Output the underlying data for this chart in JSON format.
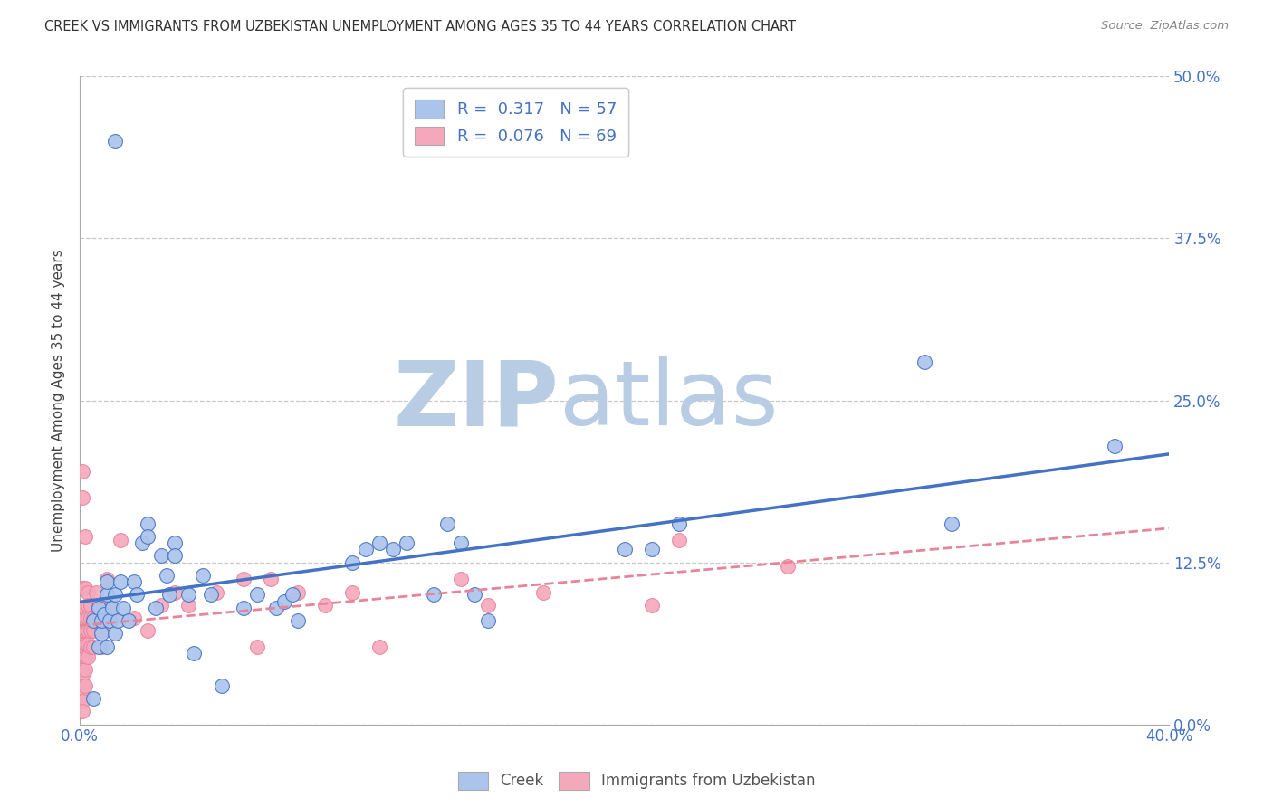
{
  "title": "CREEK VS IMMIGRANTS FROM UZBEKISTAN UNEMPLOYMENT AMONG AGES 35 TO 44 YEARS CORRELATION CHART",
  "source": "Source: ZipAtlas.com",
  "ylabel": "Unemployment Among Ages 35 to 44 years",
  "xlim": [
    0.0,
    0.4
  ],
  "ylim": [
    0.0,
    0.5
  ],
  "xticks": [
    0.0,
    0.1,
    0.2,
    0.3,
    0.4
  ],
  "yticks": [
    0.0,
    0.125,
    0.25,
    0.375,
    0.5
  ],
  "ytick_labels_right": [
    "0.0%",
    "12.5%",
    "25.0%",
    "37.5%",
    "50.0%"
  ],
  "xtick_labels": [
    "0.0%",
    "",
    "",
    "",
    "40.0%"
  ],
  "creek_R": "0.317",
  "creek_N": "57",
  "uzbek_R": "0.076",
  "uzbek_N": "69",
  "creek_color": "#aac4ec",
  "uzbek_color": "#f5a8bc",
  "creek_line_color": "#4472c4",
  "uzbek_line_color": "#e8849a",
  "watermark_ZIP": "ZIP",
  "watermark_atlas": "atlas",
  "watermark_color": "#c8d8ea",
  "background_color": "#ffffff",
  "grid_color": "#c8c8c8",
  "title_color": "#333333",
  "creek_points": [
    [
      0.013,
      0.45
    ],
    [
      0.005,
      0.02
    ],
    [
      0.005,
      0.08
    ],
    [
      0.007,
      0.06
    ],
    [
      0.007,
      0.09
    ],
    [
      0.008,
      0.07
    ],
    [
      0.008,
      0.08
    ],
    [
      0.009,
      0.085
    ],
    [
      0.01,
      0.1
    ],
    [
      0.01,
      0.11
    ],
    [
      0.01,
      0.06
    ],
    [
      0.011,
      0.08
    ],
    [
      0.012,
      0.09
    ],
    [
      0.013,
      0.1
    ],
    [
      0.013,
      0.07
    ],
    [
      0.014,
      0.08
    ],
    [
      0.015,
      0.11
    ],
    [
      0.016,
      0.09
    ],
    [
      0.018,
      0.08
    ],
    [
      0.02,
      0.11
    ],
    [
      0.021,
      0.1
    ],
    [
      0.023,
      0.14
    ],
    [
      0.025,
      0.155
    ],
    [
      0.025,
      0.145
    ],
    [
      0.028,
      0.09
    ],
    [
      0.03,
      0.13
    ],
    [
      0.032,
      0.115
    ],
    [
      0.033,
      0.1
    ],
    [
      0.035,
      0.14
    ],
    [
      0.035,
      0.13
    ],
    [
      0.04,
      0.1
    ],
    [
      0.042,
      0.055
    ],
    [
      0.045,
      0.115
    ],
    [
      0.048,
      0.1
    ],
    [
      0.052,
      0.03
    ],
    [
      0.06,
      0.09
    ],
    [
      0.065,
      0.1
    ],
    [
      0.072,
      0.09
    ],
    [
      0.075,
      0.095
    ],
    [
      0.078,
      0.1
    ],
    [
      0.08,
      0.08
    ],
    [
      0.1,
      0.125
    ],
    [
      0.105,
      0.135
    ],
    [
      0.11,
      0.14
    ],
    [
      0.115,
      0.135
    ],
    [
      0.12,
      0.14
    ],
    [
      0.13,
      0.1
    ],
    [
      0.135,
      0.155
    ],
    [
      0.14,
      0.14
    ],
    [
      0.145,
      0.1
    ],
    [
      0.15,
      0.08
    ],
    [
      0.2,
      0.135
    ],
    [
      0.21,
      0.135
    ],
    [
      0.22,
      0.155
    ],
    [
      0.31,
      0.28
    ],
    [
      0.32,
      0.155
    ],
    [
      0.38,
      0.215
    ]
  ],
  "uzbek_points": [
    [
      0.001,
      0.195
    ],
    [
      0.001,
      0.175
    ],
    [
      0.001,
      0.105
    ],
    [
      0.001,
      0.09
    ],
    [
      0.001,
      0.08
    ],
    [
      0.001,
      0.075
    ],
    [
      0.001,
      0.07
    ],
    [
      0.001,
      0.065
    ],
    [
      0.001,
      0.062
    ],
    [
      0.001,
      0.058
    ],
    [
      0.001,
      0.053
    ],
    [
      0.001,
      0.048
    ],
    [
      0.001,
      0.042
    ],
    [
      0.001,
      0.038
    ],
    [
      0.001,
      0.03
    ],
    [
      0.001,
      0.022
    ],
    [
      0.001,
      0.018
    ],
    [
      0.001,
      0.01
    ],
    [
      0.002,
      0.145
    ],
    [
      0.002,
      0.105
    ],
    [
      0.002,
      0.082
    ],
    [
      0.002,
      0.072
    ],
    [
      0.002,
      0.062
    ],
    [
      0.002,
      0.052
    ],
    [
      0.002,
      0.042
    ],
    [
      0.002,
      0.03
    ],
    [
      0.003,
      0.102
    ],
    [
      0.003,
      0.092
    ],
    [
      0.003,
      0.082
    ],
    [
      0.003,
      0.072
    ],
    [
      0.003,
      0.062
    ],
    [
      0.003,
      0.052
    ],
    [
      0.004,
      0.092
    ],
    [
      0.004,
      0.082
    ],
    [
      0.004,
      0.072
    ],
    [
      0.004,
      0.06
    ],
    [
      0.005,
      0.082
    ],
    [
      0.005,
      0.072
    ],
    [
      0.005,
      0.06
    ],
    [
      0.006,
      0.102
    ],
    [
      0.006,
      0.082
    ],
    [
      0.007,
      0.092
    ],
    [
      0.007,
      0.08
    ],
    [
      0.008,
      0.072
    ],
    [
      0.008,
      0.06
    ],
    [
      0.01,
      0.112
    ],
    [
      0.01,
      0.092
    ],
    [
      0.011,
      0.09
    ],
    [
      0.012,
      0.082
    ],
    [
      0.015,
      0.142
    ],
    [
      0.02,
      0.082
    ],
    [
      0.025,
      0.072
    ],
    [
      0.03,
      0.092
    ],
    [
      0.035,
      0.102
    ],
    [
      0.04,
      0.092
    ],
    [
      0.05,
      0.102
    ],
    [
      0.06,
      0.112
    ],
    [
      0.065,
      0.06
    ],
    [
      0.07,
      0.112
    ],
    [
      0.08,
      0.102
    ],
    [
      0.09,
      0.092
    ],
    [
      0.1,
      0.102
    ],
    [
      0.11,
      0.06
    ],
    [
      0.14,
      0.112
    ],
    [
      0.15,
      0.092
    ],
    [
      0.17,
      0.102
    ],
    [
      0.21,
      0.092
    ],
    [
      0.22,
      0.142
    ],
    [
      0.26,
      0.122
    ]
  ]
}
